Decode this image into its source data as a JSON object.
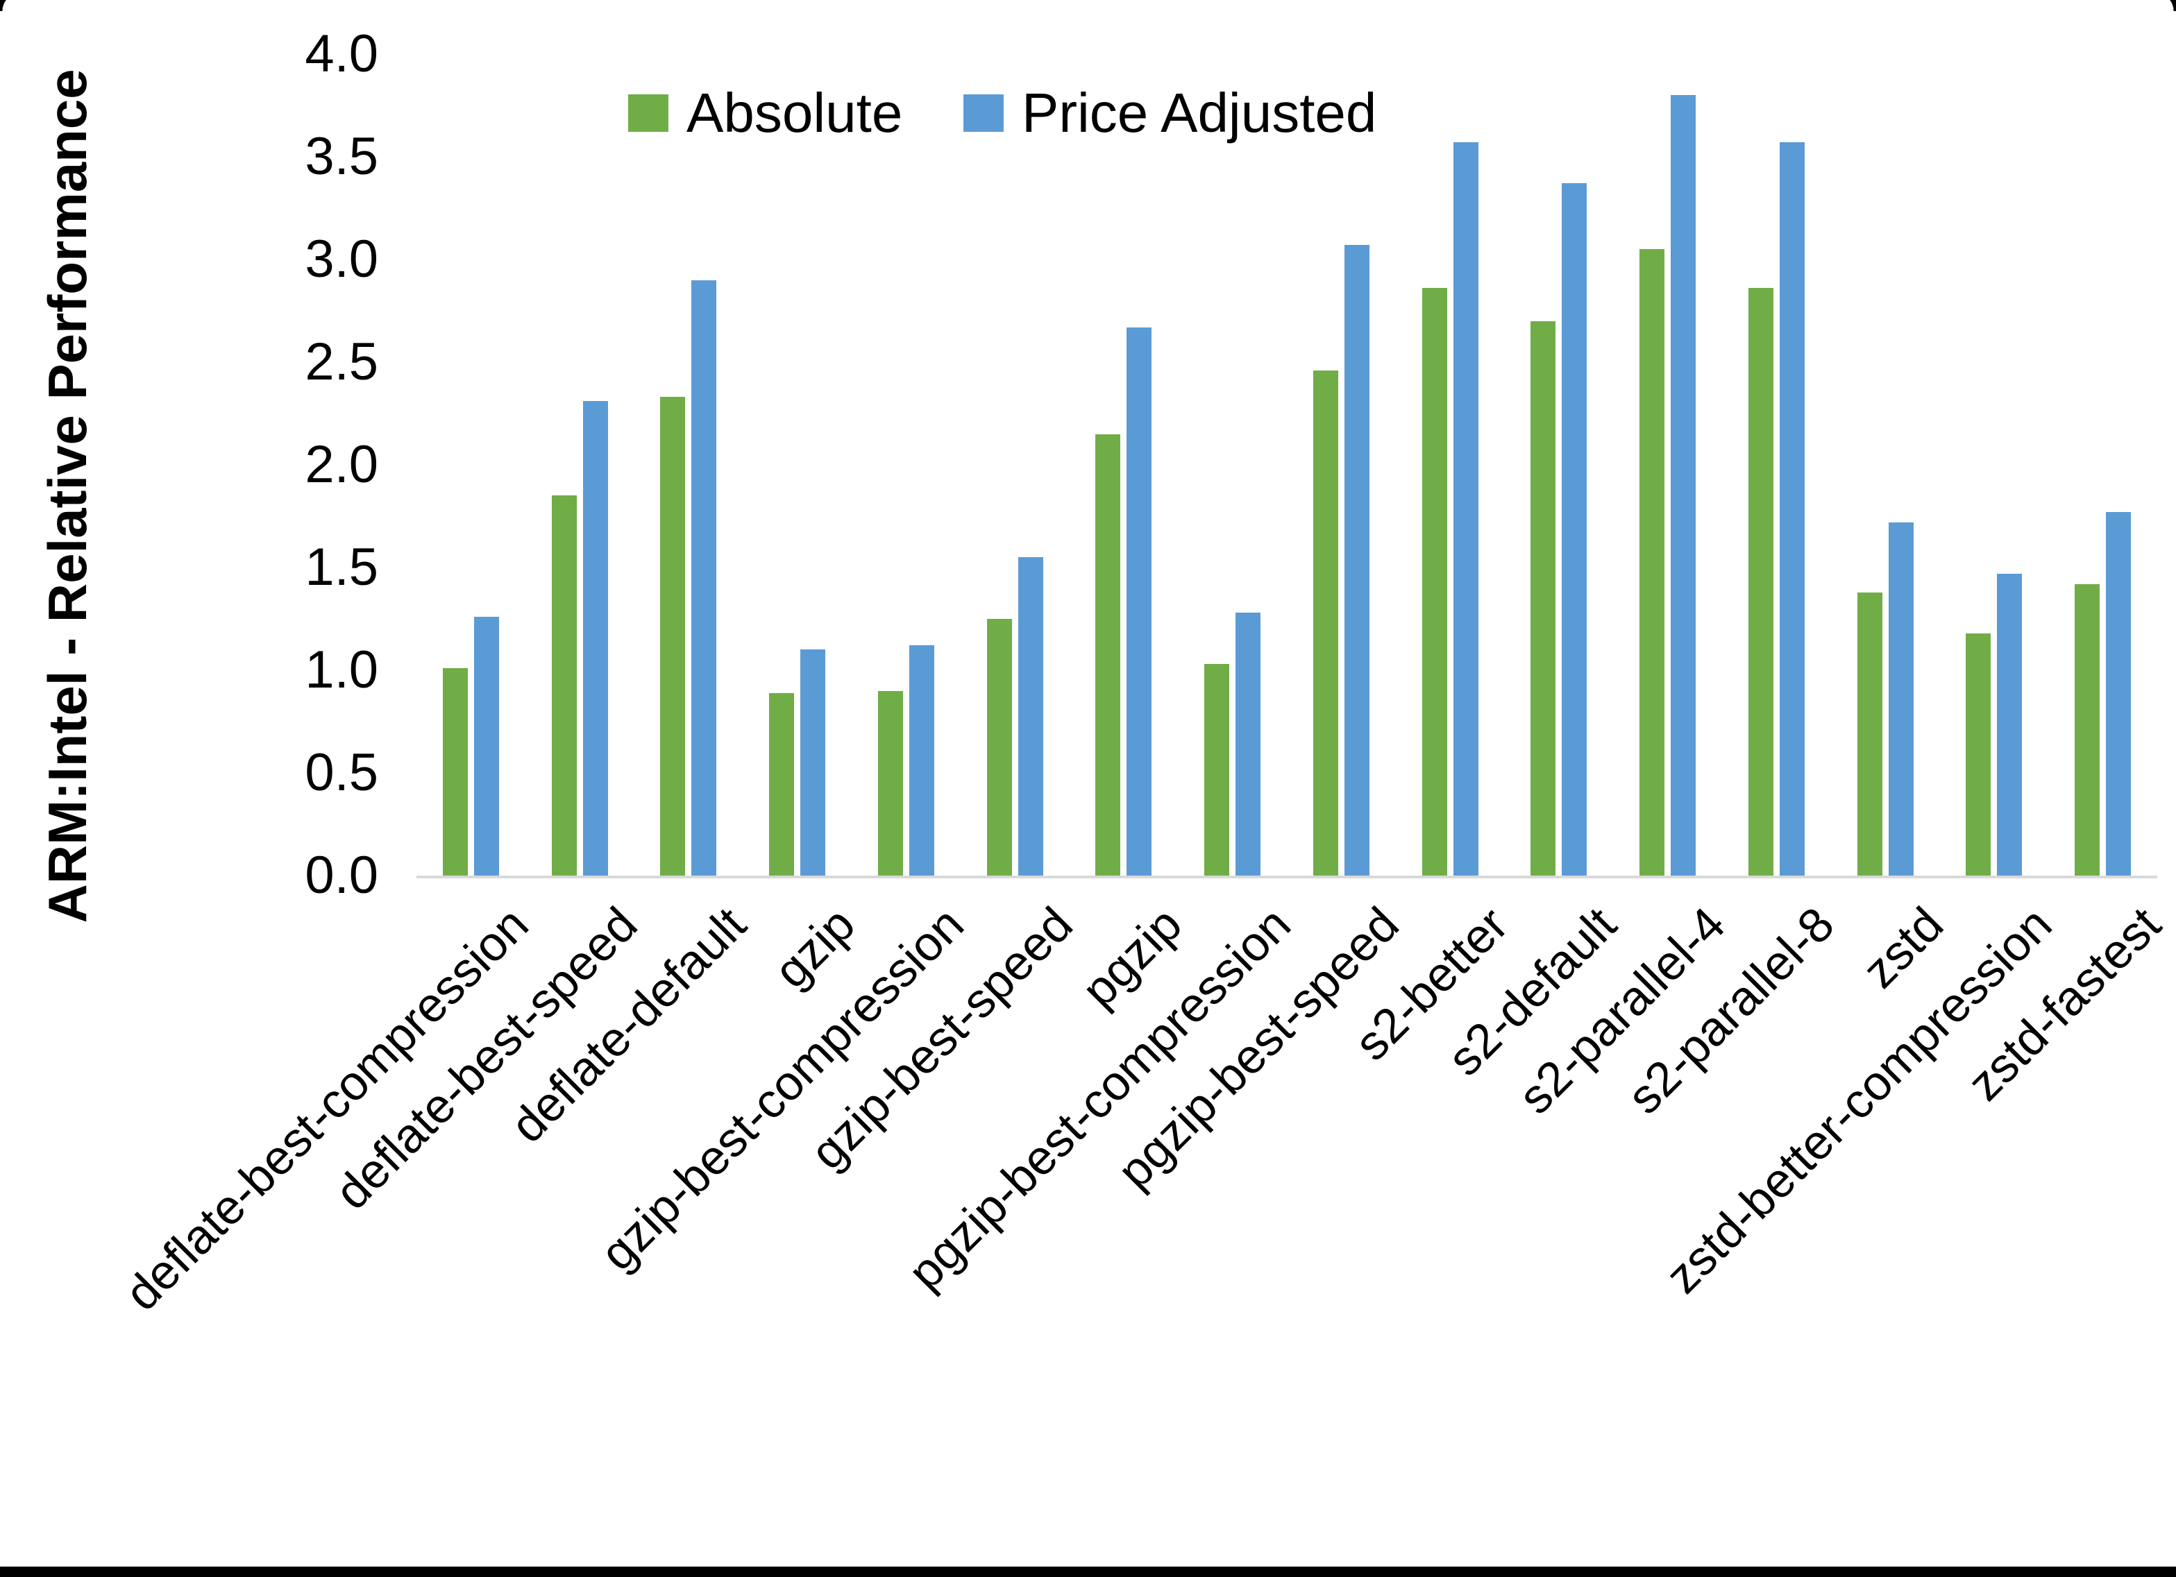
{
  "frame": {
    "background": "#ffffff",
    "bottom_bar_color": "#000000"
  },
  "legend": {
    "items": [
      {
        "label": "Absolute",
        "color": "#70AD47"
      },
      {
        "label": "Price Adjusted",
        "color": "#5B9BD5"
      }
    ]
  },
  "chart_data": {
    "type": "bar",
    "title": "",
    "xlabel": "",
    "ylabel": "ARM:Intel - Relative Performance",
    "ylim": [
      0.0,
      4.0
    ],
    "ytick_step": 0.5,
    "ytick_labels": [
      "0.0",
      "0.5",
      "1.0",
      "1.5",
      "2.0",
      "2.5",
      "3.0",
      "3.5",
      "4.0"
    ],
    "grid": false,
    "legend_position": "top",
    "axis_line_color": "#d9d9d9",
    "categories": [
      "deflate-best-compression",
      "deflate-best-speed",
      "deflate-default",
      "gzip",
      "gzip-best-compression",
      "gzip-best-speed",
      "pgzip",
      "pgzip-best-compression",
      "pgzip-best-speed",
      "s2-better",
      "s2-default",
      "s2-parallel-4",
      "s2-parallel-8",
      "zstd",
      "zstd-better-compression",
      "zstd-fastest"
    ],
    "series": [
      {
        "name": "Absolute",
        "color": "#70AD47",
        "values": [
          1.01,
          1.85,
          2.33,
          0.89,
          0.9,
          1.25,
          2.15,
          1.03,
          2.46,
          2.86,
          2.7,
          3.05,
          2.86,
          1.38,
          1.18,
          1.42
        ]
      },
      {
        "name": "Price Adjusted",
        "color": "#5B9BD5",
        "values": [
          1.26,
          2.31,
          2.9,
          1.1,
          1.12,
          1.55,
          2.67,
          1.28,
          3.07,
          3.57,
          3.37,
          3.8,
          3.57,
          1.72,
          1.47,
          1.77
        ]
      }
    ]
  },
  "layout_note": ""
}
